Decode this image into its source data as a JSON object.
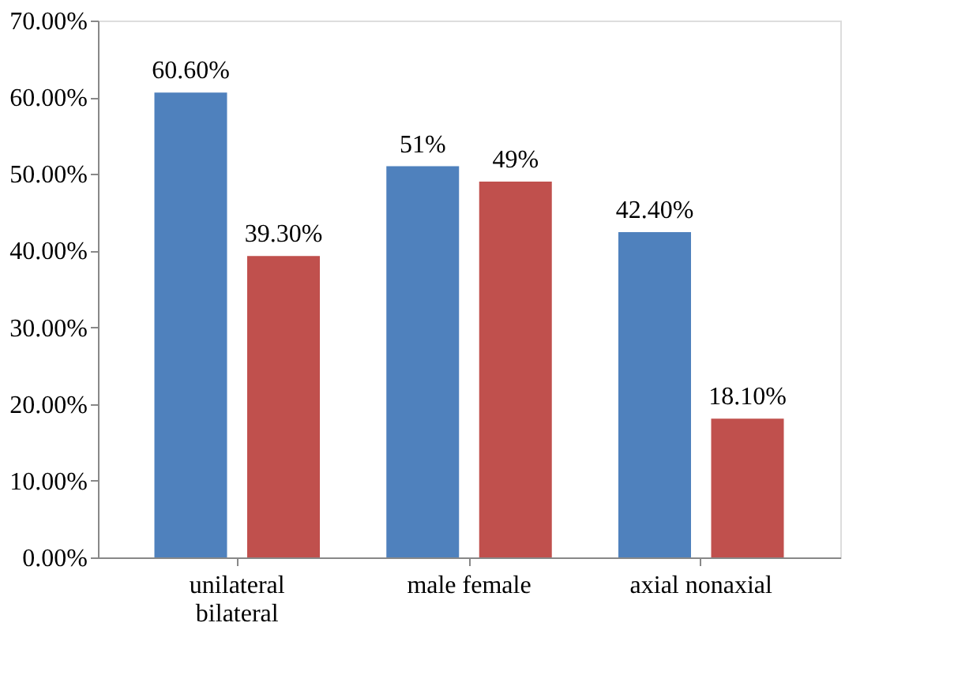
{
  "chart_data": {
    "type": "bar",
    "categories": [
      "unilateral bilateral",
      "male female",
      "axial nonaxial"
    ],
    "series": [
      {
        "color": "#4f81bd",
        "values": [
          60.6,
          51,
          42.4
        ],
        "value_labels": [
          "60.60%",
          "51%",
          "42.40%"
        ]
      },
      {
        "color": "#c0504d",
        "values": [
          39.3,
          49,
          18.1
        ],
        "value_labels": [
          "39.30%",
          "49%",
          "18.10%"
        ]
      }
    ],
    "ylim": [
      0,
      70
    ],
    "yticks": [
      {
        "value": 0,
        "label": "0.00%"
      },
      {
        "value": 10,
        "label": "10.00%"
      },
      {
        "value": 20,
        "label": "20.00%"
      },
      {
        "value": 30,
        "label": "30.00%"
      },
      {
        "value": 40,
        "label": "40.00%"
      },
      {
        "value": 50,
        "label": "50.00%"
      },
      {
        "value": 60,
        "label": "60.00%"
      },
      {
        "value": 70,
        "label": "70.00%"
      }
    ],
    "grid": false,
    "legend": false
  }
}
